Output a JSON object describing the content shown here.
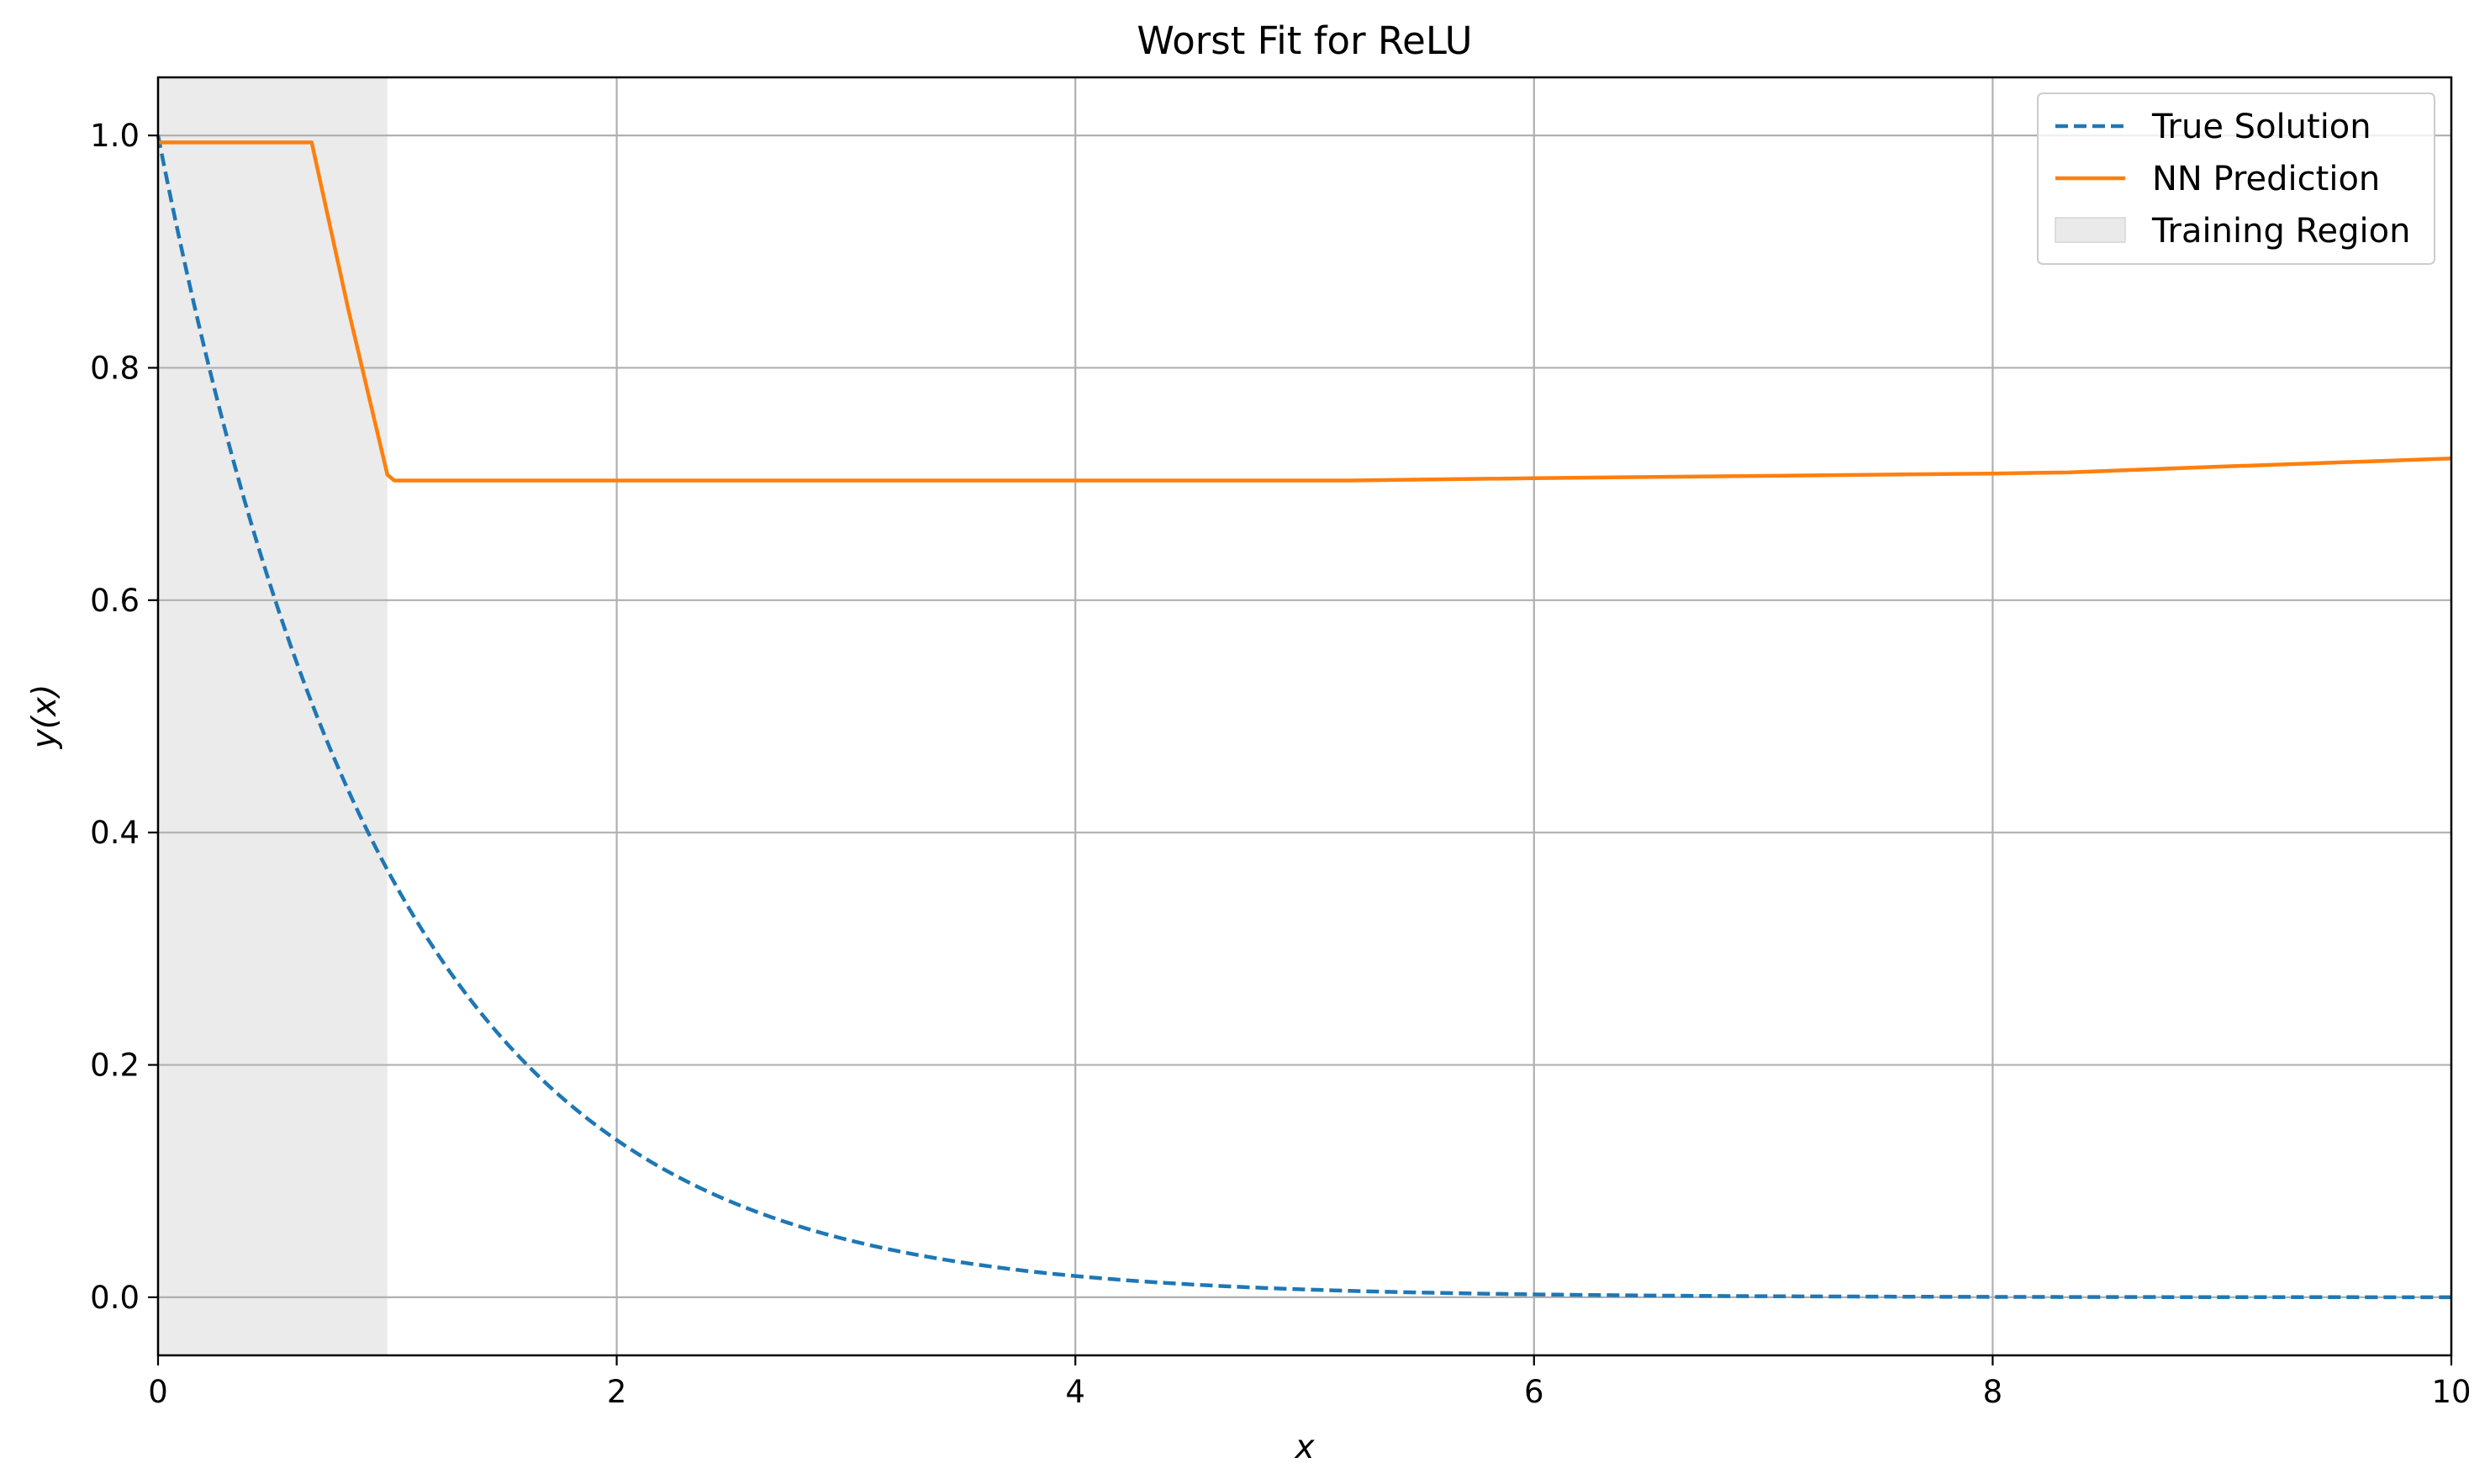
{
  "chart_data": {
    "type": "line",
    "title": "Worst Fit for ReLU",
    "xlabel": "x",
    "ylabel": "y(x)",
    "xlim": [
      0,
      10
    ],
    "ylim": [
      -0.05,
      1.05
    ],
    "x_ticks": [
      0,
      2,
      4,
      6,
      8,
      10
    ],
    "y_ticks": [
      0.0,
      0.2,
      0.4,
      0.6,
      0.8,
      1.0
    ],
    "x_tick_labels": [
      "0",
      "2",
      "4",
      "6",
      "8",
      "10"
    ],
    "y_tick_labels": [
      "0.0",
      "0.2",
      "0.4",
      "0.6",
      "0.8",
      "1.0"
    ],
    "grid": true,
    "legend_position": "upper right",
    "shaded_regions": [
      {
        "name": "Training Region",
        "x_start": 0,
        "x_end": 1,
        "color": "#e6e6e6"
      }
    ],
    "series": [
      {
        "name": "True Solution",
        "style": "dashed",
        "color": "#1f77b4",
        "function": "exp(-x)",
        "x": [
          0,
          0.25,
          0.5,
          0.75,
          1,
          1.25,
          1.5,
          1.75,
          2,
          2.5,
          3,
          3.5,
          4,
          4.5,
          5,
          6,
          7,
          8,
          9,
          10
        ],
        "y": [
          1.0,
          0.779,
          0.607,
          0.472,
          0.368,
          0.287,
          0.223,
          0.174,
          0.135,
          0.082,
          0.05,
          0.03,
          0.018,
          0.011,
          0.007,
          0.002,
          0.001,
          0.0,
          0.0,
          0.0
        ]
      },
      {
        "name": "NN Prediction",
        "style": "solid",
        "color": "#ff7f0e",
        "x": [
          0,
          0.67,
          0.83,
          1.0,
          1.03,
          2,
          4,
          5.2,
          6,
          7,
          8,
          8.33,
          9,
          10
        ],
        "y": [
          0.994,
          0.994,
          0.85,
          0.708,
          0.703,
          0.703,
          0.703,
          0.703,
          0.705,
          0.707,
          0.709,
          0.71,
          0.715,
          0.722
        ]
      }
    ]
  }
}
